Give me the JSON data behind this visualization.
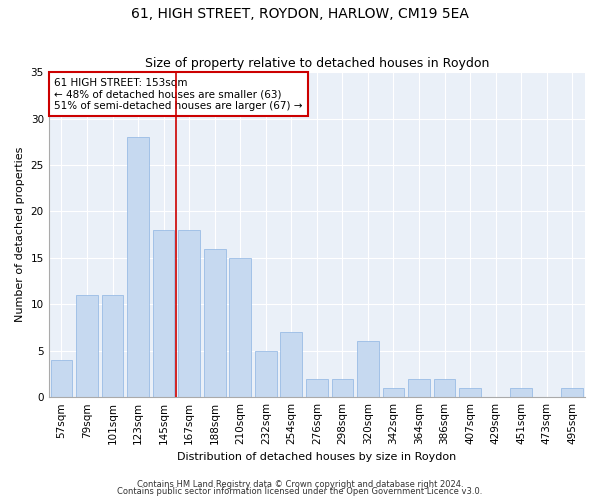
{
  "title1": "61, HIGH STREET, ROYDON, HARLOW, CM19 5EA",
  "title2": "Size of property relative to detached houses in Roydon",
  "xlabel": "Distribution of detached houses by size in Roydon",
  "ylabel": "Number of detached properties",
  "categories": [
    "57sqm",
    "79sqm",
    "101sqm",
    "123sqm",
    "145sqm",
    "167sqm",
    "188sqm",
    "210sqm",
    "232sqm",
    "254sqm",
    "276sqm",
    "298sqm",
    "320sqm",
    "342sqm",
    "364sqm",
    "386sqm",
    "407sqm",
    "429sqm",
    "451sqm",
    "473sqm",
    "495sqm"
  ],
  "values": [
    4,
    11,
    11,
    28,
    18,
    18,
    16,
    15,
    5,
    7,
    2,
    2,
    6,
    1,
    2,
    2,
    1,
    0,
    1,
    0,
    1
  ],
  "bar_color": "#c6d9f0",
  "bar_edge_color": "#8db4e2",
  "vline_x": 4.5,
  "vline_color": "#cc0000",
  "annotation_text": "61 HIGH STREET: 153sqm\n← 48% of detached houses are smaller (63)\n51% of semi-detached houses are larger (67) →",
  "annotation_box_color": "white",
  "annotation_box_edge_color": "#cc0000",
  "ylim": [
    0,
    35
  ],
  "yticks": [
    0,
    5,
    10,
    15,
    20,
    25,
    30,
    35
  ],
  "footer1": "Contains HM Land Registry data © Crown copyright and database right 2024.",
  "footer2": "Contains public sector information licensed under the Open Government Licence v3.0.",
  "plot_bg_color": "#eaf0f8",
  "grid_color": "white",
  "title1_fontsize": 10,
  "title2_fontsize": 9,
  "xlabel_fontsize": 8,
  "ylabel_fontsize": 8,
  "tick_fontsize": 7.5,
  "annotation_fontsize": 7.5,
  "footer_fontsize": 6
}
